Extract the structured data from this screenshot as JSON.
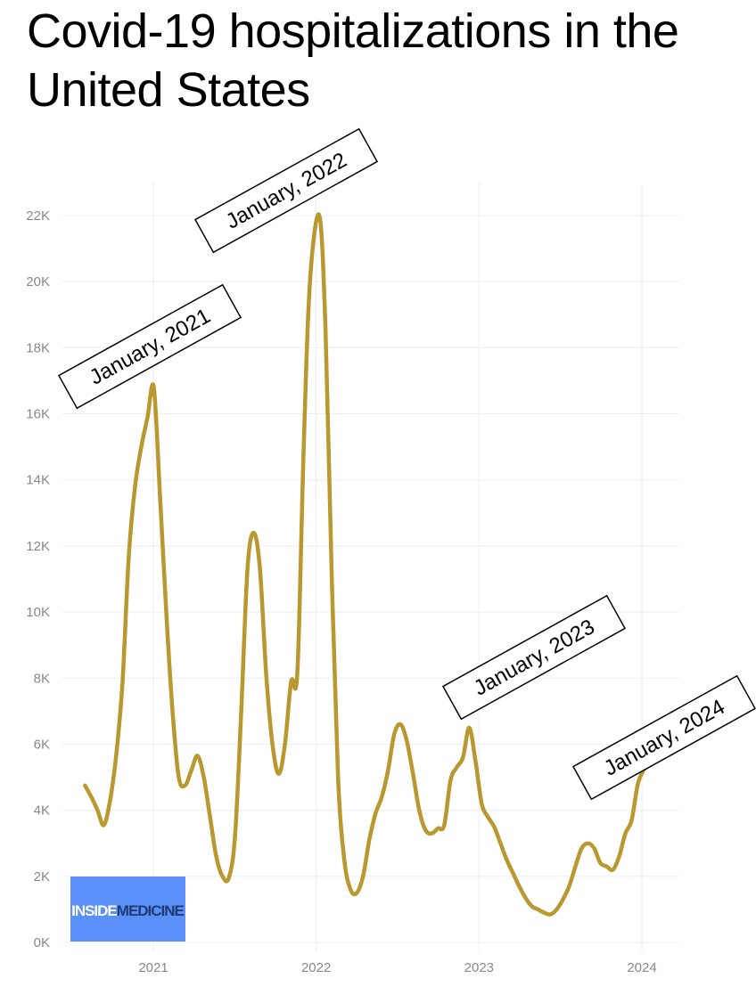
{
  "title": "Covid-19 hospitalizations in the United States",
  "colors": {
    "line": "#b8982f",
    "grid": "#eeeeee",
    "tick": "#888888",
    "logo_bg": "#5b8ff9",
    "logo_text_a": "#ffffff",
    "logo_text_b": "#1f3b73"
  },
  "logo": {
    "part1": "INSIDE",
    "part2": "MEDICINE"
  },
  "annotations": [
    "January, 2021",
    "January, 2022",
    "January, 2023",
    "January, 2024"
  ],
  "chart_data": {
    "type": "line",
    "title": "Covid-19 hospitalizations in the United States",
    "xlabel": "",
    "ylabel": "",
    "ylim": [
      0,
      22000
    ],
    "y_ticks": [
      0,
      2000,
      4000,
      6000,
      8000,
      10000,
      12000,
      14000,
      16000,
      18000,
      20000,
      22000
    ],
    "y_tick_labels": [
      "0K",
      "2K",
      "4K",
      "6K",
      "8K",
      "10K",
      "12K",
      "14K",
      "16K",
      "18K",
      "20K",
      "22K"
    ],
    "x_ticks": [
      "2021-01-01",
      "2022-01-01",
      "2023-01-01",
      "2024-01-01"
    ],
    "x_tick_labels": [
      "2021",
      "2022",
      "2023",
      "2024"
    ],
    "grid": true,
    "series": [
      {
        "points": [
          [
            "2020-08-01",
            4750
          ],
          [
            "2020-08-15",
            4400
          ],
          [
            "2020-08-29",
            4000
          ],
          [
            "2020-09-12",
            3550
          ],
          [
            "2020-09-26",
            4300
          ],
          [
            "2020-10-10",
            5700
          ],
          [
            "2020-10-24",
            7900
          ],
          [
            "2020-11-07",
            11700
          ],
          [
            "2020-11-21",
            13800
          ],
          [
            "2020-12-05",
            15000
          ],
          [
            "2020-12-19",
            15900
          ],
          [
            "2021-01-02",
            16800
          ],
          [
            "2021-01-16",
            13500
          ],
          [
            "2021-01-30",
            10000
          ],
          [
            "2021-02-13",
            7000
          ],
          [
            "2021-02-27",
            5000
          ],
          [
            "2021-03-13",
            4750
          ],
          [
            "2021-03-27",
            5200
          ],
          [
            "2021-04-10",
            5650
          ],
          [
            "2021-04-24",
            5000
          ],
          [
            "2021-05-08",
            3800
          ],
          [
            "2021-05-22",
            2600
          ],
          [
            "2021-06-05",
            2000
          ],
          [
            "2021-06-19",
            1950
          ],
          [
            "2021-07-03",
            3200
          ],
          [
            "2021-07-17",
            7000
          ],
          [
            "2021-07-31",
            11300
          ],
          [
            "2021-08-14",
            12400
          ],
          [
            "2021-08-28",
            11300
          ],
          [
            "2021-09-11",
            8100
          ],
          [
            "2021-09-25",
            6000
          ],
          [
            "2021-10-09",
            5100
          ],
          [
            "2021-10-23",
            6000
          ],
          [
            "2021-11-06",
            7900
          ],
          [
            "2021-11-20",
            8200
          ],
          [
            "2021-12-04",
            15000
          ],
          [
            "2021-12-18",
            20000
          ],
          [
            "2022-01-08",
            22000
          ],
          [
            "2022-01-22",
            18500
          ],
          [
            "2022-02-05",
            11000
          ],
          [
            "2022-02-19",
            5000
          ],
          [
            "2022-03-05",
            2500
          ],
          [
            "2022-03-19",
            1600
          ],
          [
            "2022-04-02",
            1500
          ],
          [
            "2022-04-16",
            2000
          ],
          [
            "2022-04-30",
            3100
          ],
          [
            "2022-05-14",
            3900
          ],
          [
            "2022-05-28",
            4400
          ],
          [
            "2022-06-11",
            5200
          ],
          [
            "2022-06-25",
            6300
          ],
          [
            "2022-07-09",
            6600
          ],
          [
            "2022-07-23",
            6100
          ],
          [
            "2022-08-06",
            5100
          ],
          [
            "2022-08-20",
            4000
          ],
          [
            "2022-09-03",
            3400
          ],
          [
            "2022-09-17",
            3300
          ],
          [
            "2022-10-01",
            3450
          ],
          [
            "2022-10-15",
            3550
          ],
          [
            "2022-10-29",
            4900
          ],
          [
            "2022-11-12",
            5300
          ],
          [
            "2022-11-26",
            5600
          ],
          [
            "2022-12-10",
            6500
          ],
          [
            "2022-12-24",
            5500
          ],
          [
            "2023-01-07",
            4200
          ],
          [
            "2023-01-21",
            3800
          ],
          [
            "2023-02-04",
            3500
          ],
          [
            "2023-02-18",
            3000
          ],
          [
            "2023-03-04",
            2500
          ],
          [
            "2023-03-18",
            2100
          ],
          [
            "2023-04-01",
            1700
          ],
          [
            "2023-04-15",
            1350
          ],
          [
            "2023-04-29",
            1100
          ],
          [
            "2023-05-13",
            1000
          ],
          [
            "2023-05-27",
            900
          ],
          [
            "2023-06-10",
            850
          ],
          [
            "2023-06-24",
            1000
          ],
          [
            "2023-07-08",
            1300
          ],
          [
            "2023-07-22",
            1700
          ],
          [
            "2023-08-05",
            2300
          ],
          [
            "2023-08-19",
            2850
          ],
          [
            "2023-09-02",
            3000
          ],
          [
            "2023-09-16",
            2850
          ],
          [
            "2023-09-30",
            2400
          ],
          [
            "2023-10-14",
            2300
          ],
          [
            "2023-10-28",
            2200
          ],
          [
            "2023-11-11",
            2600
          ],
          [
            "2023-11-25",
            3300
          ],
          [
            "2023-12-09",
            3700
          ],
          [
            "2023-12-23",
            4800
          ],
          [
            "2024-01-06",
            5250
          ]
        ]
      }
    ]
  }
}
